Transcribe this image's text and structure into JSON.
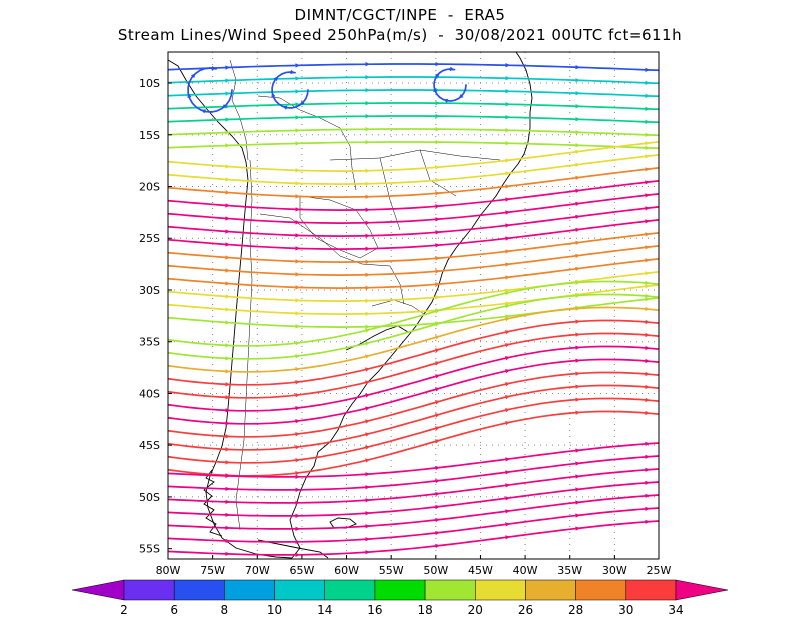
{
  "title": {
    "line1": "DIMNT/CGCT/INPE  -  ERA5",
    "line2": "Stream Lines/Wind Speed 250hPa(m/s)  -  30/08/2021 00UTC fct=611h"
  },
  "map": {
    "lat_labels": [
      "10S",
      "15S",
      "20S",
      "25S",
      "30S",
      "35S",
      "40S",
      "45S",
      "50S",
      "55S"
    ],
    "lon_labels": [
      "80W",
      "75W",
      "70W",
      "65W",
      "60W",
      "55W",
      "50W",
      "45W",
      "40W",
      "35W",
      "30W",
      "25W"
    ],
    "lat_range": [
      -56,
      -7
    ],
    "lon_range": [
      -80,
      -25
    ]
  },
  "colorbar": {
    "labels": [
      "2",
      "6",
      "8",
      "10",
      "14",
      "16",
      "18",
      "20",
      "26",
      "28",
      "30",
      "34"
    ],
    "colors": [
      "#a000c8",
      "#6a2ff0",
      "#2850f0",
      "#00a0e0",
      "#00c8c8",
      "#00d28c",
      "#00dc00",
      "#a0e632",
      "#e6dc32",
      "#e6af2d",
      "#f08228",
      "#fa3c3c",
      "#f00082"
    ]
  }
}
